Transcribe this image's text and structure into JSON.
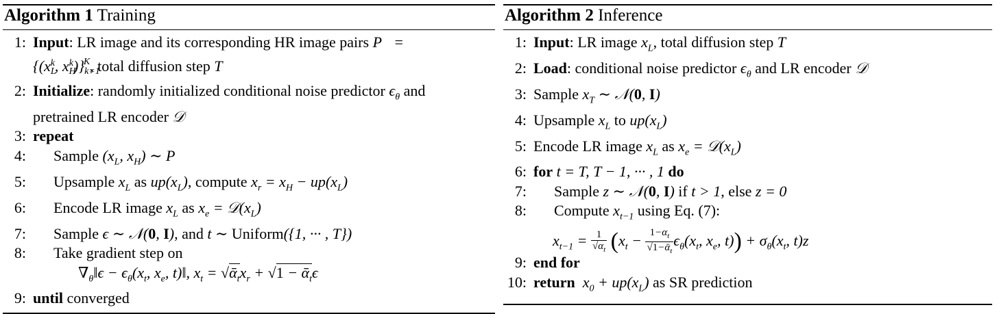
{
  "algorithm1": {
    "label": "Algorithm 1",
    "name": "Training",
    "lines": [
      {
        "num": "1:",
        "keyword": "Input",
        "text": ": LR image and its corresponding HR image pairs ",
        "math": "P =",
        "cont": "{(x",
        "cont_text": ", total diffusion step ",
        "cont_math": "T"
      },
      {
        "num": "2:",
        "keyword": "Initialize",
        "text": ": randomly initialized conditional noise predictor ",
        "math": "ϵθ",
        "tail": " and",
        "cont": "pretrained LR encoder ",
        "cont_math": "𝒟"
      },
      {
        "num": "3:",
        "keyword": "repeat"
      },
      {
        "num": "4:",
        "text": "Sample ",
        "math": "(xL, xH) ∼ P"
      },
      {
        "num": "5:",
        "text": "Upsample ",
        "math": "xL",
        "text2": " as ",
        "math2": "up(xL)",
        "text3": ", compute ",
        "math3": "xr = xH − up(xL)"
      },
      {
        "num": "6:",
        "text": "Encode LR image ",
        "math": "xL",
        "text2": " as ",
        "math2": "xe = 𝒟(xL)"
      },
      {
        "num": "7:",
        "text": "Sample ",
        "math": "ϵ ∼ 𝒩(0, I)",
        "text2": ", and ",
        "math2": "t ∼ Uniform({1, ··· , T})"
      },
      {
        "num": "8:",
        "text": "Take gradient step on",
        "formula": "∇θ‖ϵ − ϵθ(xt, xe, t)‖, xt = √ᾱt xr + √(1 − ᾱt) ϵ"
      },
      {
        "num": "9:",
        "keyword": "until",
        "text": " converged"
      }
    ]
  },
  "algorithm2": {
    "label": "Algorithm 2",
    "name": "Inference",
    "lines": [
      {
        "num": "1:",
        "keyword": "Input",
        "text": ": LR image ",
        "math": "xL",
        "text2": ", total diffusion step ",
        "math2": "T"
      },
      {
        "num": "2:",
        "keyword": "Load",
        "text": ": conditional noise predictor ",
        "math": "ϵθ",
        "text2": " and LR encoder ",
        "math2": "𝒟"
      },
      {
        "num": "3:",
        "text": "Sample ",
        "math": "xT ∼ 𝒩(0, I)"
      },
      {
        "num": "4:",
        "text": "Upsample ",
        "math": "xL",
        "text2": " to ",
        "math2": "up(xL)"
      },
      {
        "num": "5:",
        "text": "Encode LR image ",
        "math": "xL",
        "text2": " as ",
        "math2": "xe = 𝒟(xL)"
      },
      {
        "num": "6:",
        "keyword": "for",
        "math": "t = T, T − 1, ··· , 1",
        "keyword2": "do"
      },
      {
        "num": "7:",
        "text": "Sample ",
        "math": "z ∼ 𝒩(0, I)",
        "text2": " if ",
        "math2": "t > 1",
        "text3": ", else ",
        "math3": "z = 0"
      },
      {
        "num": "8:",
        "text": "Compute ",
        "math": "xt−1",
        "text2": " using Eq. (7):",
        "formula": "xt−1 = 1/√αt (xt − (1−αt)/√(1−ᾱt) ϵθ(xt, xe, t)) + σθ(xt, t)z"
      },
      {
        "num": "9:",
        "keyword": "end for"
      },
      {
        "num": "10:",
        "keyword": "return",
        "math": "x0 + up(xL)",
        "text": " as SR prediction"
      }
    ]
  }
}
